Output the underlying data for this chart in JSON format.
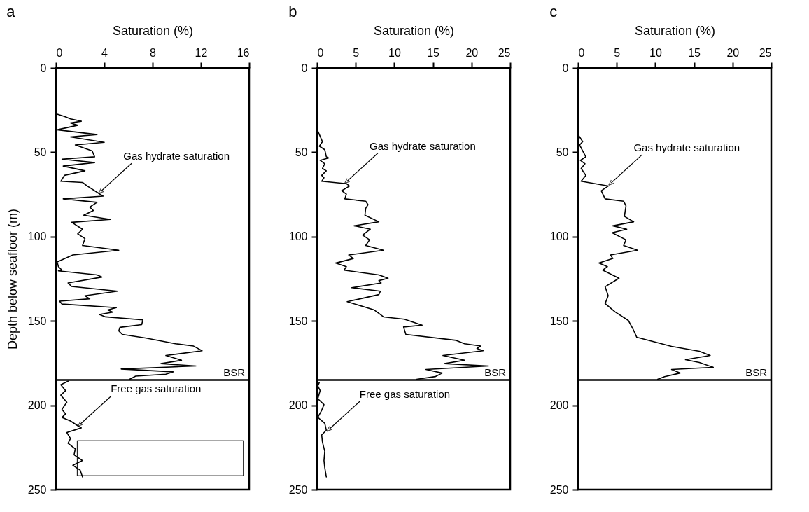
{
  "chart_data": [
    {
      "type": "line",
      "title": "a",
      "xlabel": "Saturation (%)",
      "ylabel": "Depth below seafloor (m)",
      "xlim": [
        0,
        16
      ],
      "xticks": [
        0,
        4,
        8,
        12,
        16
      ],
      "ylim": [
        250,
        0
      ],
      "yticks": [
        0,
        50,
        100,
        150,
        200,
        250
      ],
      "line_style": "solid",
      "marker": "none",
      "grid": false,
      "legend": false,
      "series": [
        {
          "color": "#000000",
          "x": [
            0.1,
            0.7,
            1.2,
            2.1,
            1.2,
            1.8,
            0.1,
            3.4,
            1.2,
            4.0,
            1.6,
            3.0,
            3.2,
            0.5,
            3.2,
            0.6,
            2.4,
            0.7,
            0.4,
            2.2,
            2.6,
            3.9,
            0.6,
            3.4,
            2.8,
            3.1,
            2.3,
            4.5,
            1.3,
            2.2,
            1.8,
            2.4,
            2.2,
            5.2,
            1.4,
            0.1,
            0.2,
            0.5,
            0.2,
            3.4,
            3.8,
            1.0,
            1.3,
            5.1,
            2.4,
            2.8,
            0.3,
            0.5,
            5.0,
            4.3,
            4.7,
            3.6,
            4.1,
            7.2,
            7.1,
            5.3,
            5.2,
            5.5,
            7.4,
            9.9,
            11.4,
            12.1,
            9.1,
            10.4,
            8.7,
            11.6,
            5.4,
            9.7,
            9.1,
            6.6,
            6.1
          ],
          "values": [
            27.4,
            28.8,
            30.2,
            31.6,
            32.6,
            34.0,
            36.7,
            39.5,
            40.9,
            44.1,
            45.7,
            49.2,
            52.7,
            54.1,
            56.1,
            58.2,
            61.0,
            63.7,
            67.2,
            67.9,
            70.0,
            76.0,
            77.6,
            79.7,
            82.5,
            84.5,
            87.3,
            89.8,
            91.5,
            95.6,
            98.4,
            101.2,
            105.3,
            108.1,
            110.9,
            115.0,
            117.8,
            119.9,
            120.3,
            122.7,
            124.0,
            127.5,
            129.6,
            132.4,
            135.1,
            136.9,
            138.3,
            140.0,
            142.1,
            143.5,
            144.8,
            146.2,
            147.6,
            149.4,
            152.2,
            153.8,
            155.9,
            158.0,
            160.1,
            163.5,
            164.9,
            167.7,
            170.5,
            173.3,
            175.3,
            176.7,
            178.5,
            180.2,
            181.6,
            182.7,
            184.6
          ]
        },
        {
          "color": "#000000",
          "x": [
            1.0,
            0.4,
            0.8,
            0.4,
            0.9,
            0.5,
            0.8,
            0.5,
            1.2,
            1.8,
            2.1,
            0.9,
            1.2,
            1.0,
            1.6,
            1.5,
            2.2,
            1.4,
            2.0,
            2.2
          ],
          "values": [
            185.7,
            187.8,
            191.3,
            194.0,
            198.2,
            202.4,
            205.1,
            207.2,
            209.3,
            212.1,
            213.4,
            216.2,
            219.7,
            222.5,
            225.9,
            229.4,
            232.8,
            235.6,
            238.4,
            242.5
          ]
        }
      ],
      "ref_lines": [
        {
          "axis": "y",
          "value": 185,
          "label": "BSR",
          "color": "#000000"
        }
      ],
      "annotations": [
        {
          "text": "Gas hydrate saturation",
          "x": 3.6,
          "y": 74
        },
        {
          "text": "Free gas saturation",
          "x": 1.9,
          "y": 212
        }
      ]
    },
    {
      "type": "line",
      "title": "b",
      "xlabel": "Saturation (%)",
      "xlim": [
        0,
        25
      ],
      "xticks": [
        0,
        5,
        10,
        15,
        20,
        25
      ],
      "ylim": [
        250,
        0
      ],
      "yticks": [
        0,
        50,
        100,
        150,
        200,
        250
      ],
      "line_style": "solid",
      "marker": "none",
      "grid": false,
      "legend": false,
      "series": [
        {
          "color": "#000000",
          "x": [
            0.1,
            0.1,
            0.1,
            0.3,
            0.7,
            0.3,
            1.0,
            1.2,
            1.5,
            0.4,
            1.0,
            0.7,
            1.2,
            0.6,
            0.9,
            0.6,
            3.8,
            4.2,
            3.2,
            3.8,
            3.6,
            6.3,
            6.6,
            6.3,
            6.2,
            8.0,
            4.8,
            6.9,
            5.9,
            6.8,
            6.3,
            8.6,
            4.1,
            4.7,
            2.4,
            3.8,
            3.5,
            8.0,
            9.2,
            8.0,
            8.3,
            4.5,
            8.2,
            8.0,
            3.9,
            7.4,
            8.0,
            8.6,
            11.3,
            13.6,
            11.2,
            11.5,
            18.0,
            19.1,
            21.2,
            20.7,
            21.5,
            16.3,
            19.1,
            16.5,
            22.2,
            14.1,
            16.2,
            15.3,
            12.9
          ],
          "values": [
            28.4,
            31.9,
            37.4,
            39.5,
            43.7,
            46.4,
            48.5,
            52.7,
            53.4,
            54.8,
            56.8,
            59.6,
            61.0,
            63.7,
            65.1,
            67.2,
            68.6,
            70.0,
            72.8,
            74.8,
            77.6,
            79.0,
            81.1,
            83.2,
            87.3,
            91.2,
            93.6,
            95.6,
            99.1,
            101.9,
            105.3,
            108.1,
            110.9,
            113.0,
            115.7,
            117.8,
            119.9,
            122.7,
            124.7,
            126.1,
            127.5,
            130.3,
            132.4,
            134.4,
            138.6,
            143.5,
            145.5,
            147.6,
            149.0,
            152.5,
            153.6,
            158.0,
            161.5,
            163.5,
            164.9,
            166.3,
            167.7,
            170.5,
            173.3,
            175.3,
            176.7,
            178.8,
            180.9,
            183.0,
            184.6
          ]
        },
        {
          "color": "#000000",
          "x": [
            0.3,
            0.1,
            0.4,
            0.1,
            0.9,
            0.6,
            0.1,
            1.0,
            1.2,
            0.6,
            0.7,
            1.0,
            0.9,
            1.0,
            1.2
          ],
          "values": [
            186.4,
            188.5,
            191.3,
            196.1,
            199.6,
            203.0,
            207.2,
            210.7,
            214.8,
            217.6,
            221.8,
            227.3,
            232.8,
            237.0,
            242.5
          ]
        }
      ],
      "ref_lines": [
        {
          "axis": "y",
          "value": 185,
          "label": "BSR",
          "color": "#000000"
        }
      ],
      "annotations": [
        {
          "text": "Gas hydrate saturation",
          "x": 3.7,
          "y": 68
        },
        {
          "text": "Free gas saturation",
          "x": 1.4,
          "y": 215
        }
      ]
    },
    {
      "type": "line",
      "title": "c",
      "xlabel": "Saturation (%)",
      "xlim": [
        0,
        25
      ],
      "xticks": [
        0,
        5,
        10,
        15,
        20,
        25
      ],
      "ylim": [
        250,
        0
      ],
      "yticks": [
        0,
        50,
        100,
        150,
        200,
        250
      ],
      "line_style": "solid",
      "marker": "none",
      "grid": false,
      "legend": false,
      "series": [
        {
          "color": "#000000",
          "x": [
            0.1,
            0.1,
            0.1,
            0.6,
            0.2,
            1.0,
            0.3,
            0.9,
            0.4,
            1.0,
            0.4,
            3.9,
            3.0,
            3.5,
            5.9,
            6.2,
            6.0,
            7.2,
            4.5,
            6.3,
            4.4,
            6.2,
            5.9,
            7.7,
            4.2,
            4.5,
            2.7,
            3.8,
            3.2,
            5.3,
            3.5,
            3.9,
            3.5,
            4.8,
            6.5,
            7.1,
            7.6,
            12.1,
            15.7,
            17.1,
            13.9,
            15.7,
            17.5,
            12.1,
            13.2,
            11.2,
            10.3
          ],
          "values": [
            29.1,
            34.6,
            40.2,
            43.7,
            45.7,
            52.7,
            54.8,
            56.8,
            59.6,
            63.7,
            67.2,
            70.0,
            72.8,
            77.6,
            79.0,
            81.8,
            88.0,
            91.2,
            93.6,
            95.6,
            97.7,
            101.9,
            105.3,
            108.1,
            110.9,
            113.0,
            115.7,
            117.8,
            119.9,
            124.7,
            129.7,
            135.1,
            139.7,
            144.7,
            149.7,
            154.7,
            159.7,
            165.1,
            168.0,
            170.5,
            173.0,
            174.6,
            177.5,
            178.8,
            180.9,
            183.0,
            184.6
          ]
        }
      ],
      "ref_lines": [
        {
          "axis": "y",
          "value": 185,
          "label": "BSR",
          "color": "#000000"
        }
      ],
      "annotations": [
        {
          "text": "Gas hydrate saturation",
          "x": 4.1,
          "y": 69
        }
      ]
    }
  ]
}
